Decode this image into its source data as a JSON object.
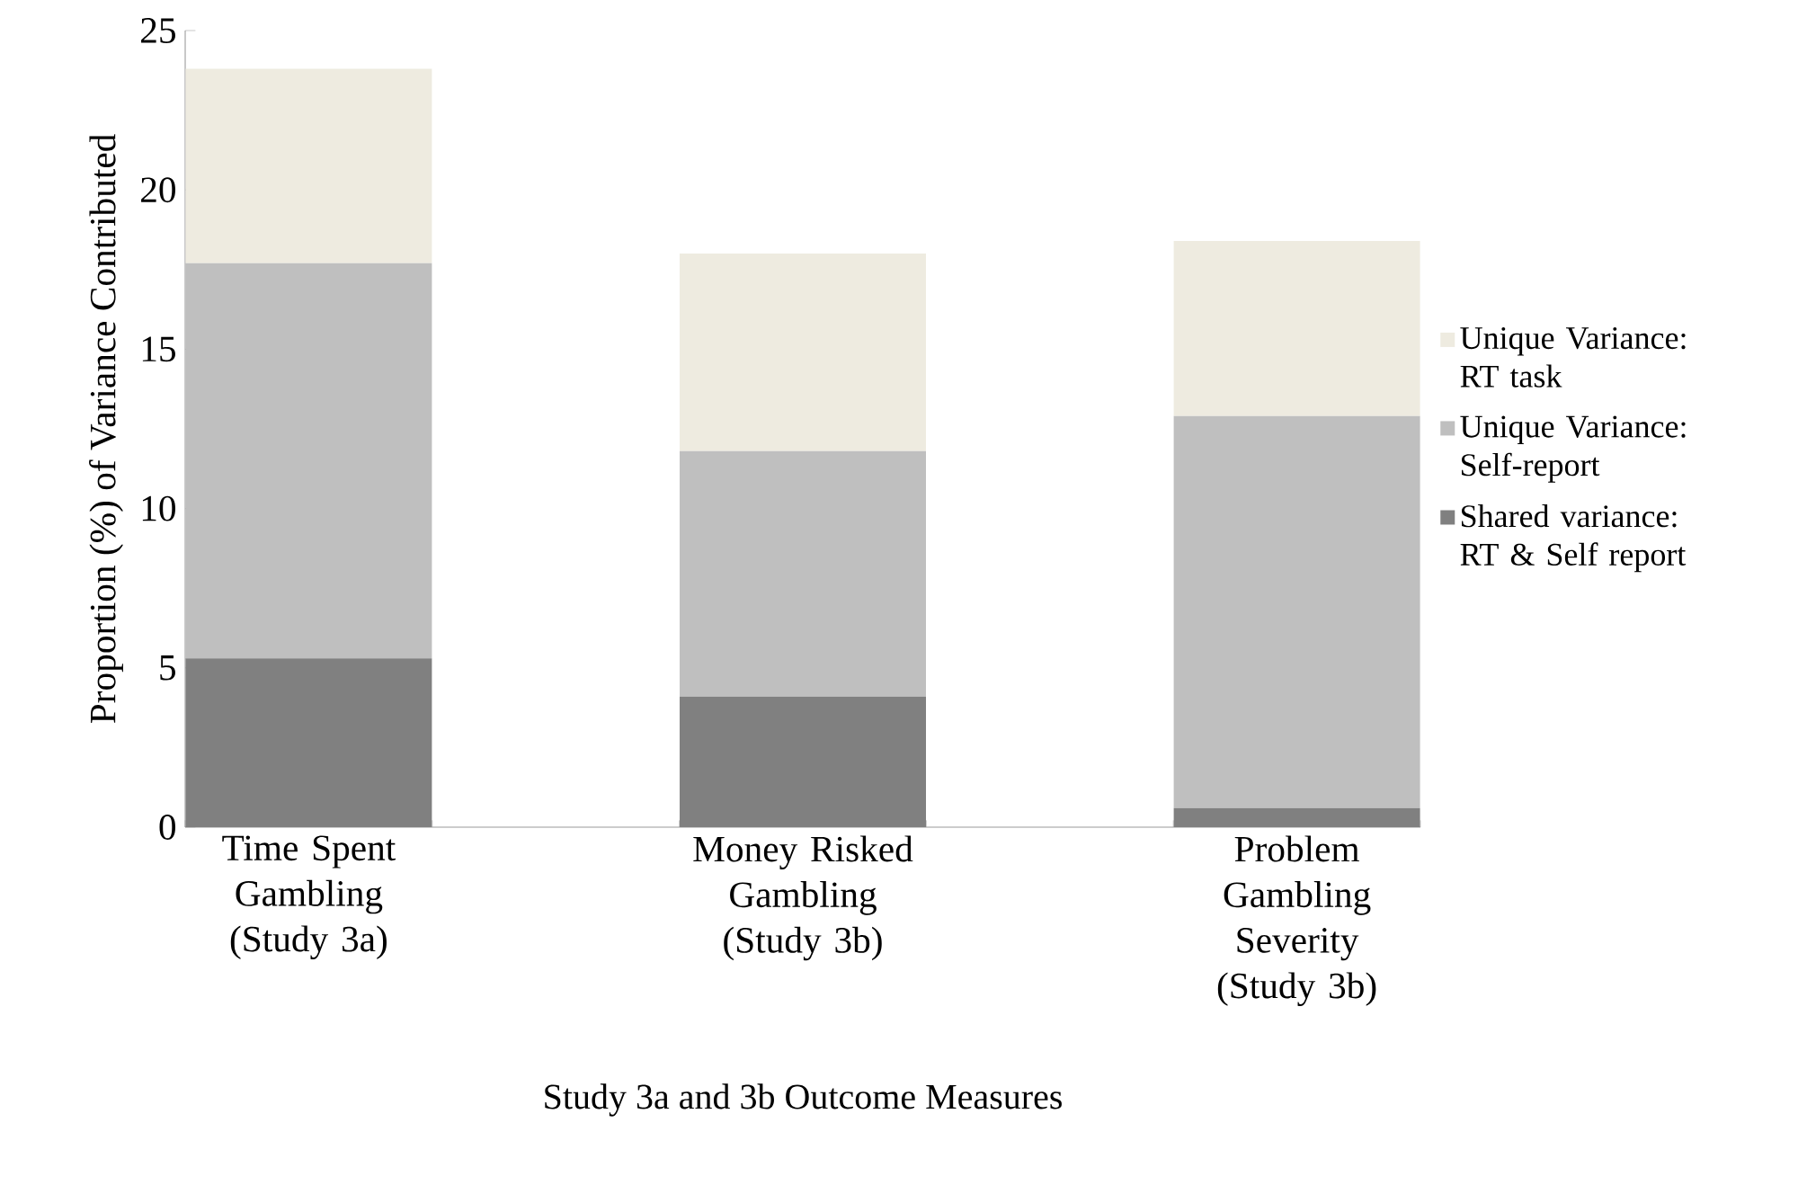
{
  "chart_data": {
    "type": "bar",
    "stacked": true,
    "xlabel": "Study 3a and 3b Outcome Measures",
    "ylabel": "Proportion (%) of Variance Contributed",
    "categories": [
      "Time Spent Gambling (Study 3a)",
      "Money Risked Gambling (Study 3b)",
      "Problem Gambling Severity (Study 3b)"
    ],
    "series": [
      {
        "name": "Shared variance: RT & Self report",
        "color": "#808080",
        "values": [
          5.3,
          4.1,
          0.6
        ]
      },
      {
        "name": "Unique Variance: Self-report",
        "color": "#bfbfbf",
        "values": [
          12.4,
          7.7,
          12.3
        ]
      },
      {
        "name": "Unique Variance: RT task",
        "color": "#eeebe0",
        "values": [
          6.1,
          6.2,
          5.5
        ]
      }
    ],
    "ylim": [
      0,
      25
    ],
    "yticks": [
      0,
      5,
      10,
      15,
      20,
      25
    ],
    "grid": false,
    "legend": "right"
  }
}
